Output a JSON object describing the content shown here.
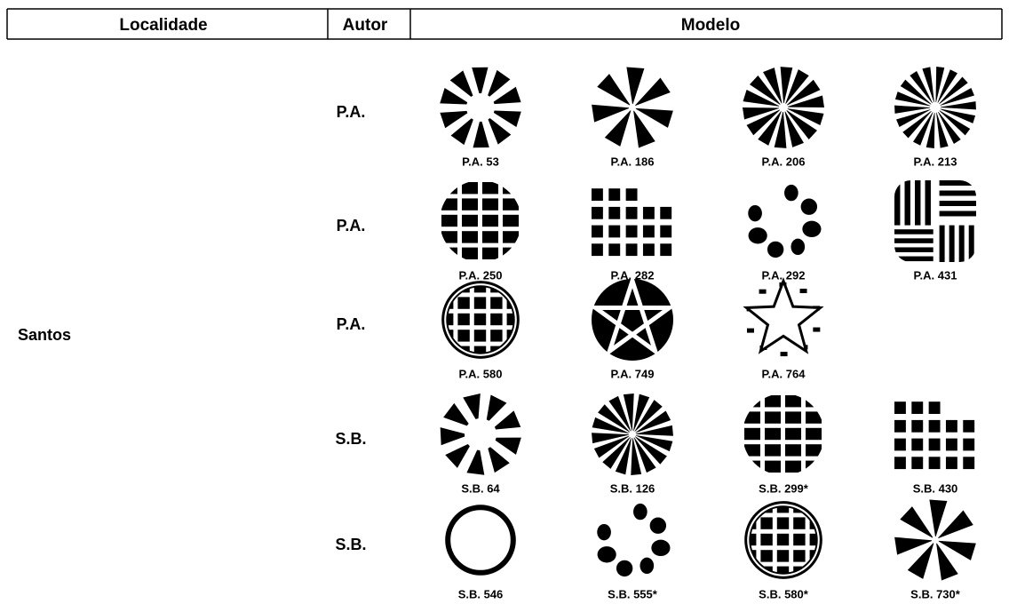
{
  "header": {
    "localidade": "Localidade",
    "autor": "Autor",
    "modelo": "Modelo"
  },
  "localidade": "Santos",
  "rows": [
    {
      "autor": "P.A.",
      "models": [
        "P.A. 53",
        "P.A. 186",
        "P.A. 206",
        "P.A. 213"
      ]
    },
    {
      "autor": "P.A.",
      "models": [
        "P.A. 250",
        "P.A. 282",
        "P.A. 292",
        "P.A. 431"
      ]
    },
    {
      "autor": "P.A.",
      "models": [
        "P.A. 580",
        "P.A. 749",
        "P.A. 764"
      ]
    },
    {
      "autor": "S.B.",
      "models": [
        "S.B. 64",
        "S.B. 126",
        "S.B. 299*",
        "S.B. 430"
      ]
    },
    {
      "autor": "S.B.",
      "models": [
        "S.B. 546",
        "S.B. 555*",
        "S.B. 580*",
        "S.B. 730*"
      ]
    }
  ]
}
